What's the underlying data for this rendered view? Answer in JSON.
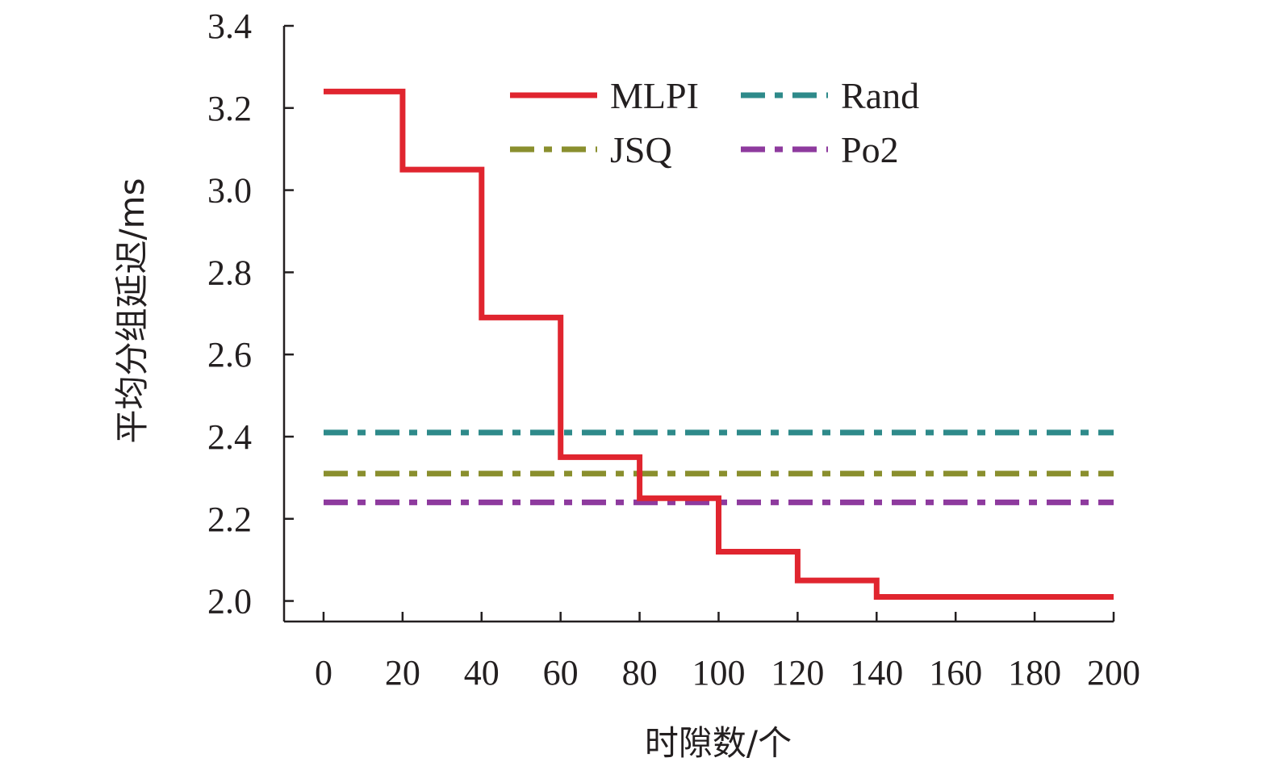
{
  "chart_data": {
    "type": "line",
    "ylabel": "平均分组延迟/ms",
    "xlabel": "时隙数/个",
    "xlim": [
      -10,
      200
    ],
    "ylim": [
      1.95,
      3.4
    ],
    "x_ticks": [
      0,
      20,
      40,
      60,
      80,
      100,
      120,
      140,
      160,
      180,
      200
    ],
    "x_tick_labels": [
      "0",
      "20",
      "40",
      "60",
      "80",
      "100",
      "120",
      "140",
      "160",
      "180",
      "200"
    ],
    "y_ticks": [
      2.0,
      2.2,
      2.4,
      2.6,
      2.8,
      3.0,
      3.2,
      3.4
    ],
    "y_tick_labels": [
      "2.0",
      "2.2",
      "2.4",
      "2.6",
      "2.8",
      "3.0",
      "3.2",
      "3.4"
    ],
    "grid": false,
    "legend_position": "top-center",
    "series": [
      {
        "name": "MLPI",
        "color": "#e0252f",
        "style": "solid-step",
        "x": [
          0,
          20,
          20,
          40,
          40,
          60,
          60,
          80,
          80,
          100,
          100,
          120,
          120,
          140,
          140,
          200
        ],
        "y": [
          3.24,
          3.24,
          3.05,
          3.05,
          2.69,
          2.69,
          2.35,
          2.35,
          2.25,
          2.25,
          2.12,
          2.12,
          2.05,
          2.05,
          2.01,
          2.01
        ]
      },
      {
        "name": "Rand",
        "color": "#2e8a8a",
        "style": "dashed",
        "x": [
          0,
          200
        ],
        "y": [
          2.41,
          2.41
        ]
      },
      {
        "name": "JSQ",
        "color": "#8a8f2e",
        "style": "dashed",
        "x": [
          0,
          200
        ],
        "y": [
          2.31,
          2.31
        ]
      },
      {
        "name": "Po2",
        "color": "#8e3a9e",
        "style": "dashed",
        "x": [
          0,
          200
        ],
        "y": [
          2.24,
          2.24
        ]
      }
    ]
  }
}
